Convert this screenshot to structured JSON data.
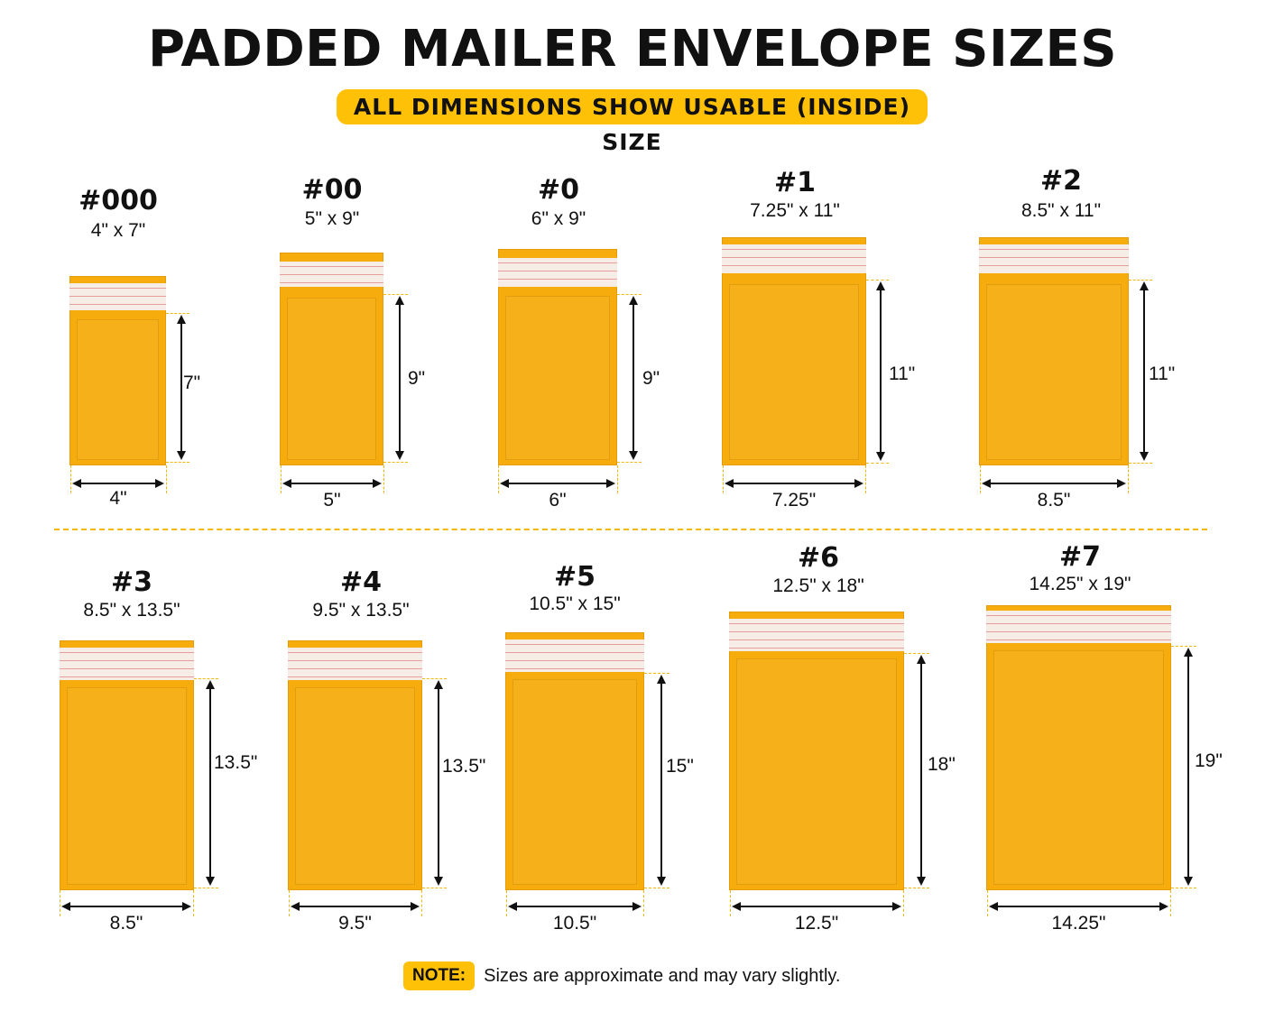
{
  "header": {
    "title": "PADDED MAILER ENVELOPE SIZES",
    "subtitle": "ALL DIMENSIONS SHOW USABLE (INSIDE) SIZE"
  },
  "colors": {
    "envelope": "#F5AC0C",
    "accent": "#FFC107",
    "divider": "#F5B800"
  },
  "items": [
    {
      "name": "#000",
      "dims": "4\" x 7\"",
      "width_label": "4\"",
      "height_label": "7\""
    },
    {
      "name": "#00",
      "dims": "5\" x 9\"",
      "width_label": "5\"",
      "height_label": "9\""
    },
    {
      "name": "#0",
      "dims": "6\" x 9\"",
      "width_label": "6\"",
      "height_label": "9\""
    },
    {
      "name": "#1",
      "dims": "7.25\" x 11\"",
      "width_label": "7.25\"",
      "height_label": "11\""
    },
    {
      "name": "#2",
      "dims": "8.5\" x 11\"",
      "width_label": "8.5\"",
      "height_label": "11\""
    },
    {
      "name": "#3",
      "dims": "8.5\" x 13.5\"",
      "width_label": "8.5\"",
      "height_label": "13.5\""
    },
    {
      "name": "#4",
      "dims": "9.5\" x 13.5\"",
      "width_label": "9.5\"",
      "height_label": "13.5\""
    },
    {
      "name": "#5",
      "dims": "10.5\" x 15\"",
      "width_label": "10.5\"",
      "height_label": "15\""
    },
    {
      "name": "#6",
      "dims": "12.5\" x 18\"",
      "width_label": "12.5\"",
      "height_label": "18\""
    },
    {
      "name": "#7",
      "dims": "14.25\" x 19\"",
      "width_label": "14.25\"",
      "height_label": "19\""
    }
  ],
  "note": {
    "label": "NOTE:",
    "text": "Sizes are approximate and may vary slightly."
  }
}
